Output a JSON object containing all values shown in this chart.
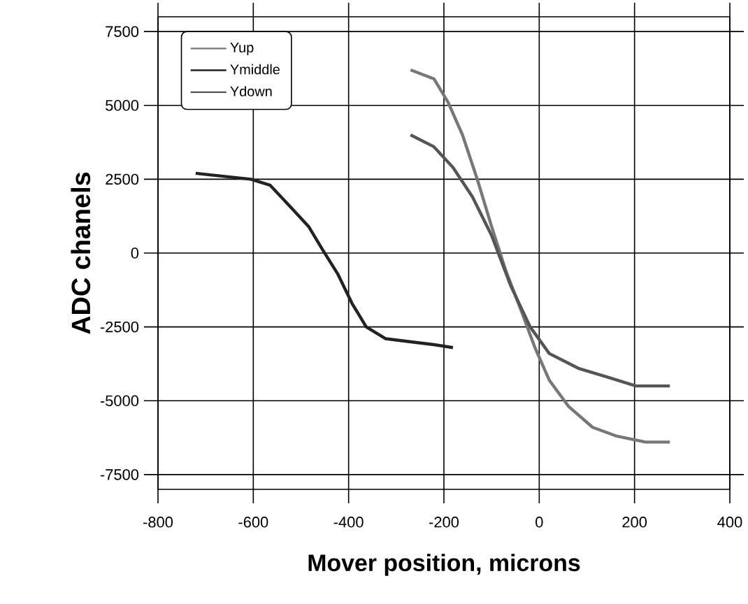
{
  "chart_data": {
    "type": "line",
    "xlabel": "Mover position, microns",
    "ylabel": "ADC  chanels",
    "xlim": [
      -800,
      400
    ],
    "ylim": [
      -8000,
      8000
    ],
    "xticks": [
      -800,
      -600,
      -400,
      -200,
      0,
      200,
      400
    ],
    "yticks": [
      7500,
      5000,
      2500,
      0,
      -2500,
      -5000,
      -7500
    ],
    "grid": true,
    "legend": "top left",
    "marker": "none",
    "line_style": "solid",
    "series": [
      {
        "name": "Yup",
        "color": "#777777",
        "x": [
          -270,
          -221,
          -191,
          -161,
          -130,
          -100,
          -70,
          -39,
          -9,
          21,
          62,
          112,
          163,
          223,
          274
        ],
        "values": [
          6200,
          5900,
          5100,
          4000,
          2500,
          900,
          -600,
          -1900,
          -3200,
          -4300,
          -5200,
          -5900,
          -6200,
          -6400,
          -6400
        ]
      },
      {
        "name": "Ymiddle",
        "color": "#222222",
        "x": [
          -721,
          -605,
          -565,
          -524,
          -484,
          -454,
          -423,
          -393,
          -363,
          -322,
          -272,
          -221,
          -181
        ],
        "values": [
          2700,
          2500,
          2300,
          1600,
          900,
          100,
          -700,
          -1700,
          -2500,
          -2900,
          -3000,
          -3100,
          -3200
        ]
      },
      {
        "name": "Ydown",
        "color": "#555555",
        "x": [
          -270,
          -221,
          -181,
          -140,
          -100,
          -60,
          -19,
          21,
          82,
          143,
          203,
          274
        ],
        "values": [
          4000,
          3600,
          2900,
          1900,
          600,
          -1100,
          -2500,
          -3400,
          -3900,
          -4200,
          -4500,
          -4500
        ]
      }
    ]
  }
}
